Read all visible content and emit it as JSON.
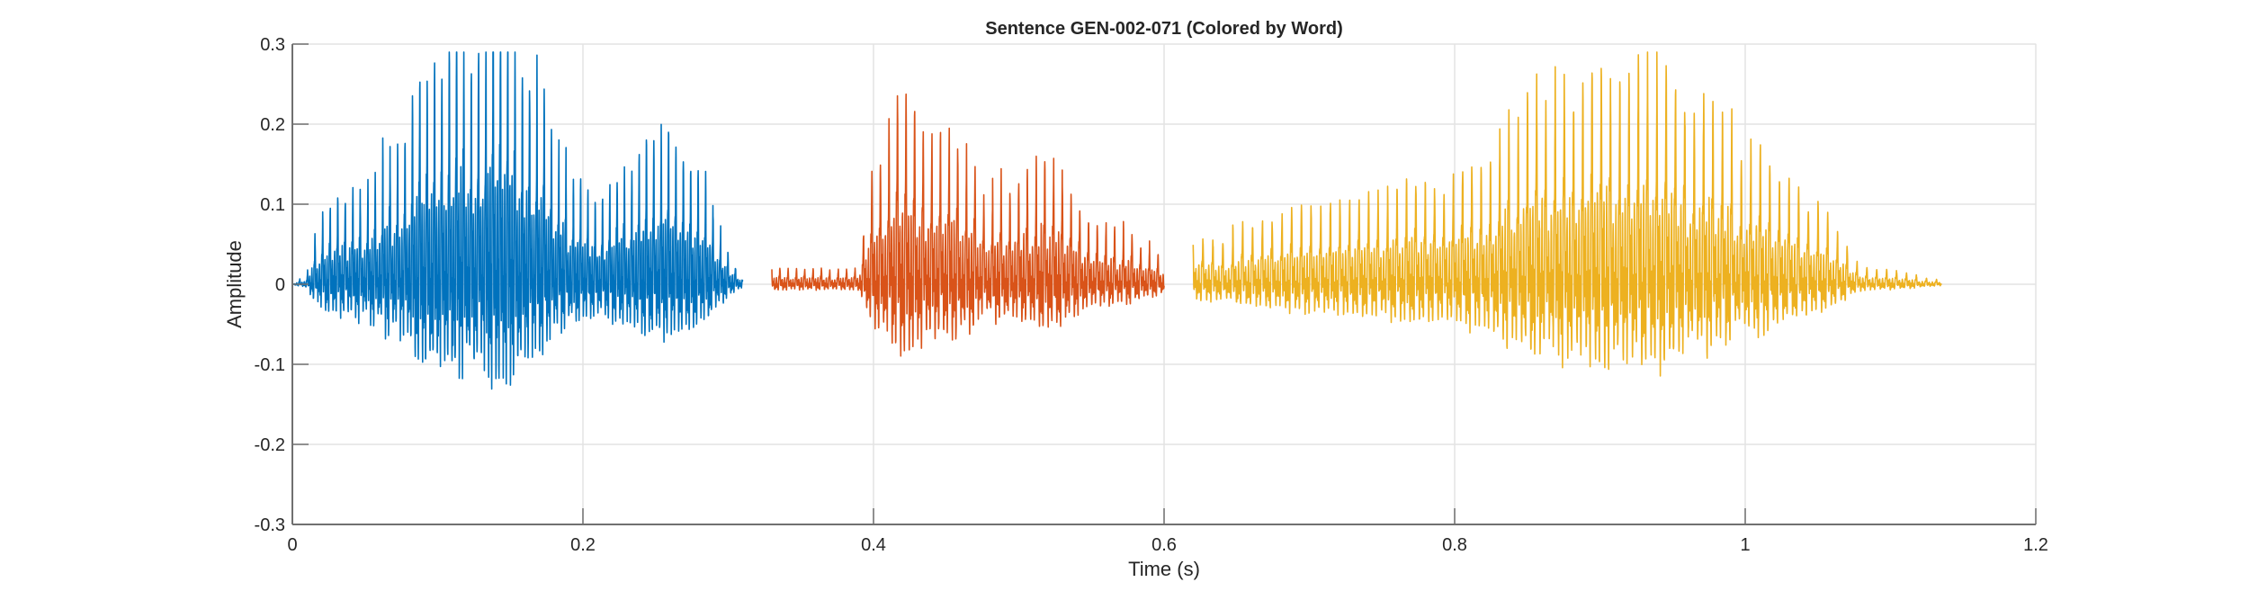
{
  "chart_data": {
    "type": "line",
    "title": "Sentence GEN-002-071 (Colored by Word)",
    "xlabel": "Time (s)",
    "ylabel": "Amplitude",
    "xlim": [
      0,
      1.2
    ],
    "ylim": [
      -0.3,
      0.3
    ],
    "xticks": [
      0,
      0.2,
      0.4,
      0.6,
      0.8,
      1,
      1.2
    ],
    "xtick_labels": [
      "0",
      "0.2",
      "0.4",
      "0.6",
      "0.8",
      "1",
      "1.2"
    ],
    "yticks": [
      -0.3,
      -0.2,
      -0.1,
      0,
      0.1,
      0.2,
      0.3
    ],
    "ytick_labels": [
      "-0.3",
      "-0.2",
      "-0.1",
      "0",
      "0.1",
      "0.2",
      "0.3"
    ],
    "grid": true,
    "legend": "none",
    "series": [
      {
        "color": "#0072BD",
        "t_range": [
          0,
          0.31
        ],
        "peak_envelope": [
          [
            0,
            0
          ],
          [
            0.01,
            0.01
          ],
          [
            0.02,
            0.08
          ],
          [
            0.05,
            0.1
          ],
          [
            0.07,
            0.15
          ],
          [
            0.1,
            0.24
          ],
          [
            0.14,
            0.28
          ],
          [
            0.17,
            0.2
          ],
          [
            0.19,
            0.12
          ],
          [
            0.21,
            0.08
          ],
          [
            0.25,
            0.16
          ],
          [
            0.28,
            0.14
          ],
          [
            0.3,
            0.03
          ],
          [
            0.31,
            0.01
          ]
        ]
      },
      {
        "color": "#D95319",
        "t_range": [
          0.33,
          0.6
        ],
        "peak_envelope": [
          [
            0.33,
            0.015
          ],
          [
            0.39,
            0.015
          ],
          [
            0.4,
            0.12
          ],
          [
            0.42,
            0.21
          ],
          [
            0.45,
            0.16
          ],
          [
            0.48,
            0.1
          ],
          [
            0.52,
            0.13
          ],
          [
            0.55,
            0.08
          ],
          [
            0.59,
            0.04
          ],
          [
            0.6,
            0.02
          ]
        ]
      },
      {
        "color": "#EDB120",
        "t_range": [
          0.62,
          1.135
        ],
        "peak_envelope": [
          [
            0.62,
            0.04
          ],
          [
            0.7,
            0.08
          ],
          [
            0.8,
            0.12
          ],
          [
            0.86,
            0.2
          ],
          [
            0.9,
            0.23
          ],
          [
            0.95,
            0.22
          ],
          [
            1.0,
            0.15
          ],
          [
            1.05,
            0.08
          ],
          [
            1.08,
            0.02
          ],
          [
            1.135,
            0.005
          ]
        ]
      }
    ]
  }
}
